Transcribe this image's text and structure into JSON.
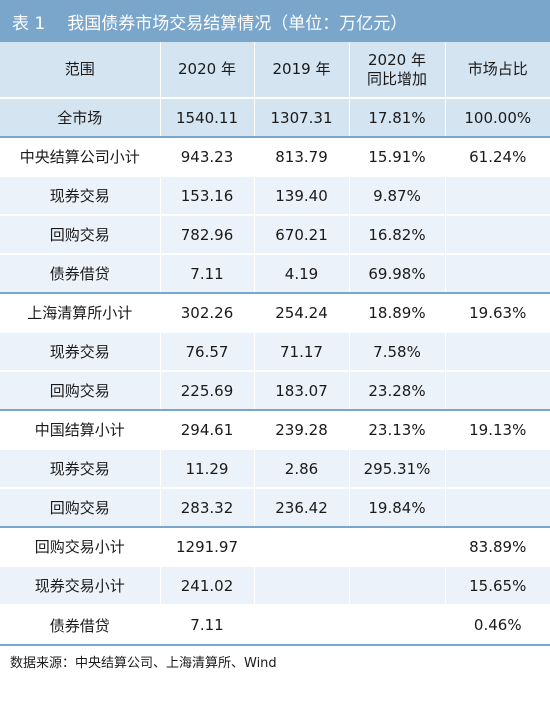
{
  "title": {
    "number": "表 1",
    "text": "我国债券市场交易结算情况（单位：万亿元）"
  },
  "headers": [
    "范围",
    "2020 年",
    "2019 年",
    "2020 年",
    "同比增加",
    "市场占比"
  ],
  "rows": [
    [
      "全市场",
      "1540.11",
      "1307.31",
      "17.81%",
      "100.00%"
    ],
    [
      "中央结算公司小计",
      "943.23",
      "813.79",
      "15.91%",
      "61.24%"
    ],
    [
      "现券交易",
      "153.16",
      "139.40",
      "9.87%",
      ""
    ],
    [
      "回购交易",
      "782.96",
      "670.21",
      "16.82%",
      ""
    ],
    [
      "债券借贷",
      "7.11",
      "4.19",
      "69.98%",
      ""
    ],
    [
      "上海清算所小计",
      "302.26",
      "254.24",
      "18.89%",
      "19.63%"
    ],
    [
      "现券交易",
      "76.57",
      "71.17",
      "7.58%",
      ""
    ],
    [
      "回购交易",
      "225.69",
      "183.07",
      "23.28%",
      ""
    ],
    [
      "中国结算小计",
      "294.61",
      "239.28",
      "23.13%",
      "19.13%"
    ],
    [
      "现券交易",
      "11.29",
      "2.86",
      "295.31%",
      ""
    ],
    [
      "回购交易",
      "283.32",
      "236.42",
      "19.84%",
      ""
    ],
    [
      "回购交易小计",
      "1291.97",
      "",
      "",
      "83.89%"
    ],
    [
      "现券交易小计",
      "241.02",
      "",
      "",
      "15.65%"
    ],
    [
      "债券借贷",
      "7.11",
      "",
      "",
      "0.46%"
    ]
  ],
  "source": "数据来源：中央结算公司、上海清算所、Wind",
  "colors": {
    "title_bg": "#7aa6cc",
    "header_bg": "#d5e4f1",
    "row_light": "#ecf2f9"
  }
}
